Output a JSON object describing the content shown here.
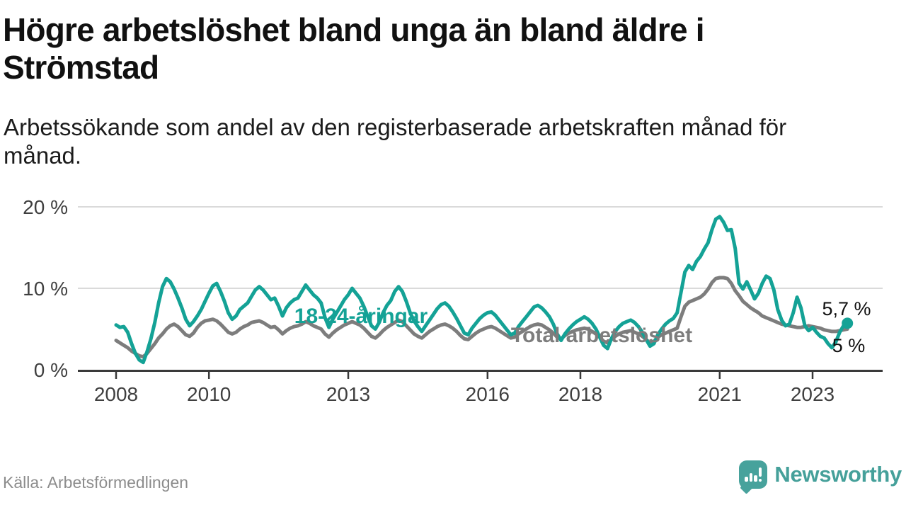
{
  "header": {
    "title": "Högre arbetslöshet bland unga än bland äldre i Strömstad",
    "subtitle": "Arbetssökande som andel av den registerbaserade arbetskraften månad för månad."
  },
  "chart_data": {
    "type": "line",
    "title": "Högre arbetslöshet bland unga än bland äldre i Strömstad",
    "subtitle": "Arbetssökande som andel av den registerbaserade arbetskraften månad för månad.",
    "source": "Källa: Arbetsförmedlingen",
    "unit": "%",
    "x_start": "2008-01",
    "x_end": "2023-10",
    "x_frequency": "monthly",
    "grid": "horizontal",
    "legend_position": "inline-labels",
    "ylim": [
      0,
      21.5
    ],
    "x_ticks": [
      {
        "value": 2008,
        "label": "2008"
      },
      {
        "value": 2010,
        "label": "2010"
      },
      {
        "value": 2013,
        "label": "2013"
      },
      {
        "value": 2016,
        "label": "2016"
      },
      {
        "value": 2018,
        "label": "2018"
      },
      {
        "value": 2021,
        "label": "2021"
      },
      {
        "value": 2023,
        "label": "2023"
      }
    ],
    "y_ticks": [
      {
        "value": 0,
        "label": "0 %"
      },
      {
        "value": 10,
        "label": "10 %"
      },
      {
        "value": 20,
        "label": "20 %"
      }
    ],
    "series": [
      {
        "name": "Total arbetslöshet",
        "color": "#7d7d7d",
        "end_label": "5 %",
        "end_dot": false,
        "values": [
          3.6,
          3.3,
          3.0,
          2.7,
          2.3,
          2.0,
          1.7,
          1.6,
          2.0,
          2.6,
          3.2,
          3.9,
          4.4,
          5.0,
          5.4,
          5.6,
          5.3,
          4.8,
          4.3,
          4.1,
          4.5,
          5.2,
          5.7,
          6.0,
          6.1,
          6.2,
          6.0,
          5.6,
          5.1,
          4.6,
          4.4,
          4.6,
          5.0,
          5.3,
          5.5,
          5.8,
          5.9,
          6.0,
          5.8,
          5.5,
          5.2,
          5.3,
          4.9,
          4.4,
          4.8,
          5.1,
          5.3,
          5.4,
          5.6,
          5.9,
          5.7,
          5.4,
          5.2,
          5.0,
          4.4,
          4.0,
          4.5,
          4.9,
          5.2,
          5.5,
          5.7,
          5.9,
          5.7,
          5.5,
          5.1,
          4.6,
          4.1,
          3.9,
          4.3,
          4.8,
          5.2,
          5.5,
          5.8,
          6.1,
          5.9,
          5.4,
          4.9,
          4.4,
          4.1,
          3.9,
          4.3,
          4.7,
          5.0,
          5.3,
          5.5,
          5.6,
          5.4,
          5.1,
          4.7,
          4.2,
          3.8,
          3.7,
          4.1,
          4.5,
          4.8,
          5.0,
          5.2,
          5.3,
          5.1,
          4.8,
          4.5,
          4.2,
          3.9,
          4.0,
          4.4,
          4.7,
          5.0,
          5.3,
          5.5,
          5.6,
          5.5,
          5.2,
          4.9,
          4.5,
          4.0,
          3.8,
          4.2,
          4.5,
          4.7,
          4.9,
          5.0,
          5.1,
          5.0,
          4.7,
          4.4,
          4.0,
          3.5,
          3.3,
          3.7,
          4.1,
          4.4,
          4.6,
          4.7,
          4.8,
          4.6,
          4.4,
          4.1,
          3.7,
          3.3,
          3.5,
          4.0,
          4.3,
          4.5,
          4.7,
          4.9,
          5.1,
          6.5,
          7.8,
          8.3,
          8.5,
          8.7,
          8.9,
          9.3,
          9.9,
          10.7,
          11.2,
          11.3,
          11.3,
          11.2,
          10.6,
          9.7,
          9.1,
          8.4,
          8.0,
          7.6,
          7.3,
          7.0,
          6.6,
          6.4,
          6.2,
          6.0,
          5.8,
          5.6,
          5.5,
          5.4,
          5.3,
          5.2,
          5.2,
          5.3,
          5.4,
          5.3,
          5.2,
          5.1,
          4.9,
          4.8,
          4.7,
          4.7,
          4.8,
          4.9,
          5.0
        ]
      },
      {
        "name": "18-24-åringar",
        "color": "#14a296",
        "end_label": "5,7 %",
        "end_dot": true,
        "values": [
          5.5,
          5.2,
          5.3,
          4.6,
          3.2,
          2.0,
          1.2,
          0.9,
          2.2,
          3.8,
          5.8,
          8.2,
          10.2,
          11.2,
          10.8,
          9.9,
          8.8,
          7.6,
          6.2,
          5.4,
          5.9,
          6.6,
          7.4,
          8.4,
          9.4,
          10.3,
          10.6,
          9.6,
          8.4,
          7.0,
          6.2,
          6.6,
          7.4,
          7.8,
          8.2,
          9.0,
          9.8,
          10.2,
          9.8,
          9.2,
          8.6,
          8.8,
          7.8,
          6.6,
          7.6,
          8.2,
          8.6,
          8.8,
          9.6,
          10.4,
          9.8,
          9.2,
          8.8,
          8.2,
          6.4,
          5.2,
          6.2,
          7.0,
          7.8,
          8.6,
          9.2,
          10.0,
          9.4,
          8.8,
          7.8,
          6.6,
          5.4,
          5.0,
          5.8,
          7.0,
          7.9,
          8.5,
          9.6,
          10.2,
          9.6,
          8.4,
          7.0,
          6.0,
          5.3,
          4.7,
          5.4,
          6.1,
          6.8,
          7.5,
          8.0,
          8.2,
          7.8,
          7.1,
          6.3,
          5.4,
          4.5,
          4.3,
          5.1,
          5.7,
          6.3,
          6.7,
          7.0,
          7.1,
          6.7,
          6.1,
          5.5,
          4.9,
          4.3,
          4.5,
          5.3,
          5.9,
          6.5,
          7.1,
          7.7,
          7.9,
          7.6,
          7.1,
          6.5,
          5.6,
          4.4,
          3.6,
          4.4,
          5.0,
          5.5,
          5.9,
          6.2,
          6.5,
          6.2,
          5.7,
          5.0,
          4.0,
          3.0,
          2.6,
          3.8,
          4.7,
          5.3,
          5.7,
          5.9,
          6.1,
          5.8,
          5.3,
          4.6,
          3.7,
          2.9,
          3.2,
          4.3,
          5.0,
          5.6,
          6.0,
          6.3,
          7.0,
          9.5,
          12.0,
          12.8,
          12.3,
          13.3,
          13.9,
          14.8,
          15.6,
          17.2,
          18.5,
          18.8,
          18.1,
          17.1,
          17.2,
          14.9,
          10.6,
          9.9,
          10.8,
          9.8,
          8.7,
          9.4,
          10.6,
          11.5,
          11.2,
          9.8,
          7.4,
          6.1,
          5.4,
          5.6,
          7.0,
          8.9,
          7.6,
          5.4,
          4.8,
          5.2,
          4.6,
          4.1,
          3.9,
          3.2,
          2.7,
          3.4,
          4.6,
          5.4,
          5.7
        ]
      }
    ]
  },
  "footer": {
    "source": "Källa: Arbetsförmedlingen",
    "brand": "Newsworthy"
  }
}
